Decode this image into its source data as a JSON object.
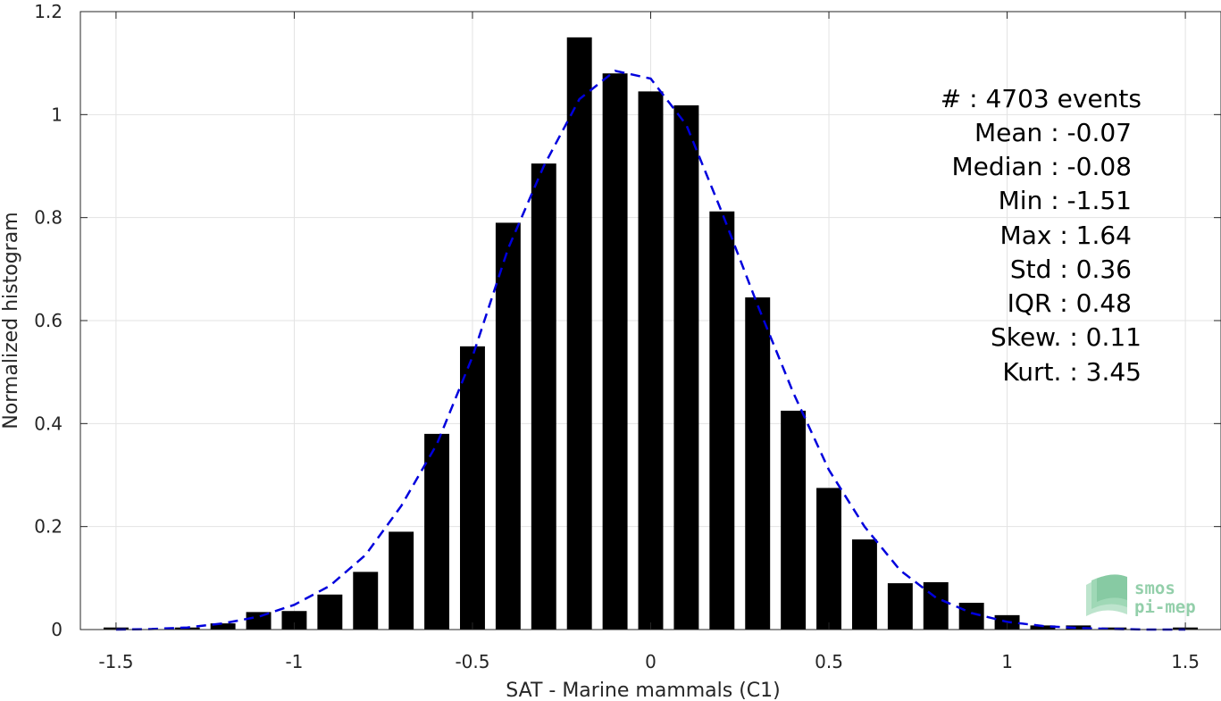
{
  "chart_data": {
    "type": "bar",
    "xlabel": "SAT - Marine mammals (C1)",
    "ylabel": "Normalized histogram",
    "xlim": [
      -1.6,
      1.6
    ],
    "ylim": [
      0,
      1.2
    ],
    "grid": true,
    "xticks": [
      -1.5,
      -1,
      -0.5,
      0,
      0.5,
      1,
      1.5
    ],
    "xtick_labels": [
      "-1.5",
      "-1",
      "-0.5",
      "0",
      "0.5",
      "1",
      "1.5"
    ],
    "yticks": [
      0,
      0.2,
      0.4,
      0.6,
      0.8,
      1,
      1.2
    ],
    "ytick_labels": [
      "0",
      "0.2",
      "0.4",
      "0.6",
      "0.8",
      "1",
      "1.2"
    ],
    "bar_width": 0.07,
    "bars": {
      "x": [
        -1.5,
        -1.4,
        -1.3,
        -1.2,
        -1.1,
        -1.0,
        -0.9,
        -0.8,
        -0.7,
        -0.6,
        -0.5,
        -0.4,
        -0.3,
        -0.2,
        -0.1,
        0.0,
        0.1,
        0.2,
        0.3,
        0.4,
        0.5,
        0.6,
        0.7,
        0.8,
        0.9,
        1.0,
        1.1,
        1.2,
        1.3,
        1.4,
        1.5
      ],
      "values": [
        0.004,
        0.0,
        0.004,
        0.012,
        0.034,
        0.036,
        0.068,
        0.112,
        0.19,
        0.38,
        0.55,
        0.79,
        0.905,
        1.15,
        1.08,
        1.045,
        1.018,
        0.812,
        0.645,
        0.425,
        0.275,
        0.175,
        0.09,
        0.092,
        0.052,
        0.028,
        0.008,
        0.008,
        0.004,
        0.0,
        0.004
      ],
      "color": "#000000"
    },
    "fit_curve": {
      "style": "dashed",
      "color": "#0000dd",
      "x": [
        -1.5,
        -1.4,
        -1.3,
        -1.2,
        -1.1,
        -1.0,
        -0.9,
        -0.8,
        -0.7,
        -0.6,
        -0.5,
        -0.4,
        -0.3,
        -0.2,
        -0.1,
        0.0,
        0.1,
        0.2,
        0.3,
        0.4,
        0.5,
        0.6,
        0.7,
        0.8,
        0.9,
        1.0,
        1.1,
        1.2,
        1.3,
        1.4,
        1.5
      ],
      "y": [
        0.0,
        0.001,
        0.004,
        0.012,
        0.025,
        0.048,
        0.085,
        0.145,
        0.24,
        0.36,
        0.53,
        0.74,
        0.9,
        1.03,
        1.085,
        1.07,
        0.98,
        0.81,
        0.63,
        0.46,
        0.31,
        0.2,
        0.115,
        0.062,
        0.032,
        0.015,
        0.007,
        0.003,
        0.001,
        0.0,
        0.0
      ]
    },
    "annotations": [
      "#  : 4703 events",
      "Mean : -0.07",
      "Median : -0.08",
      "Min : -1.51",
      "Max : 1.64",
      "Std : 0.36",
      "IQR : 0.48",
      "Skew. : 0.11",
      "Kurt. : 3.45"
    ]
  },
  "watermark": {
    "line1": "smos",
    "line2": "pi-mep",
    "color": "#6fbf8e"
  }
}
